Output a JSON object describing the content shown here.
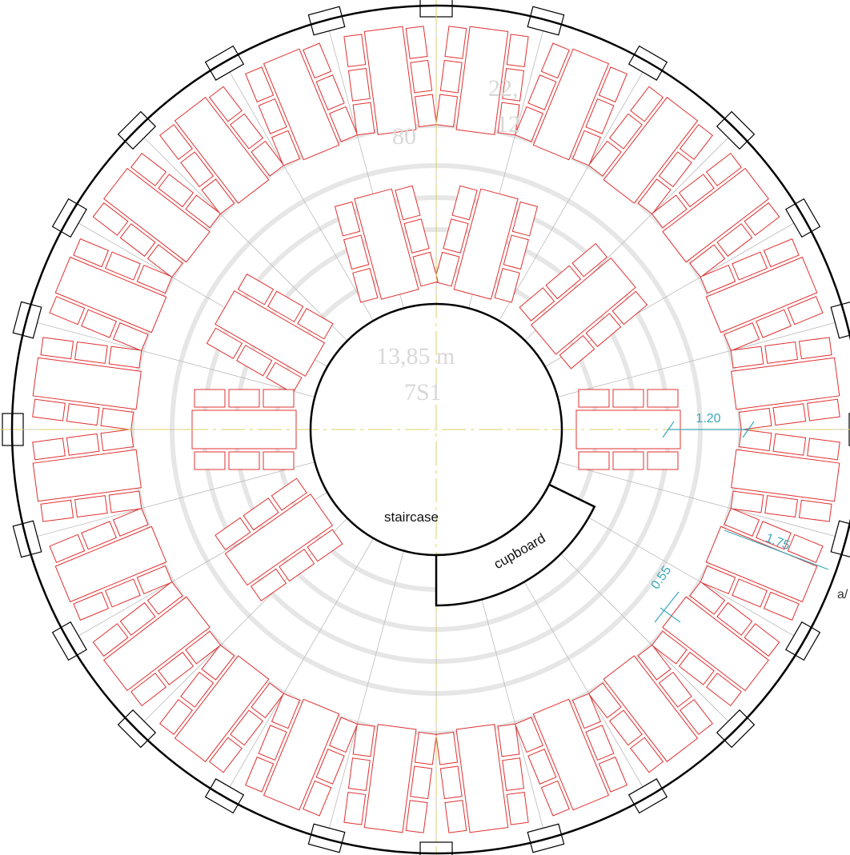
{
  "labels": {
    "staircase": "staircase",
    "cupboard": "cupboard",
    "margin_note": "a/"
  },
  "dimensions": [
    "1.20",
    "1.75",
    "0.55"
  ],
  "background_text": [
    "13,85 m",
    "7S1",
    "80",
    "22,",
    "12"
  ]
}
